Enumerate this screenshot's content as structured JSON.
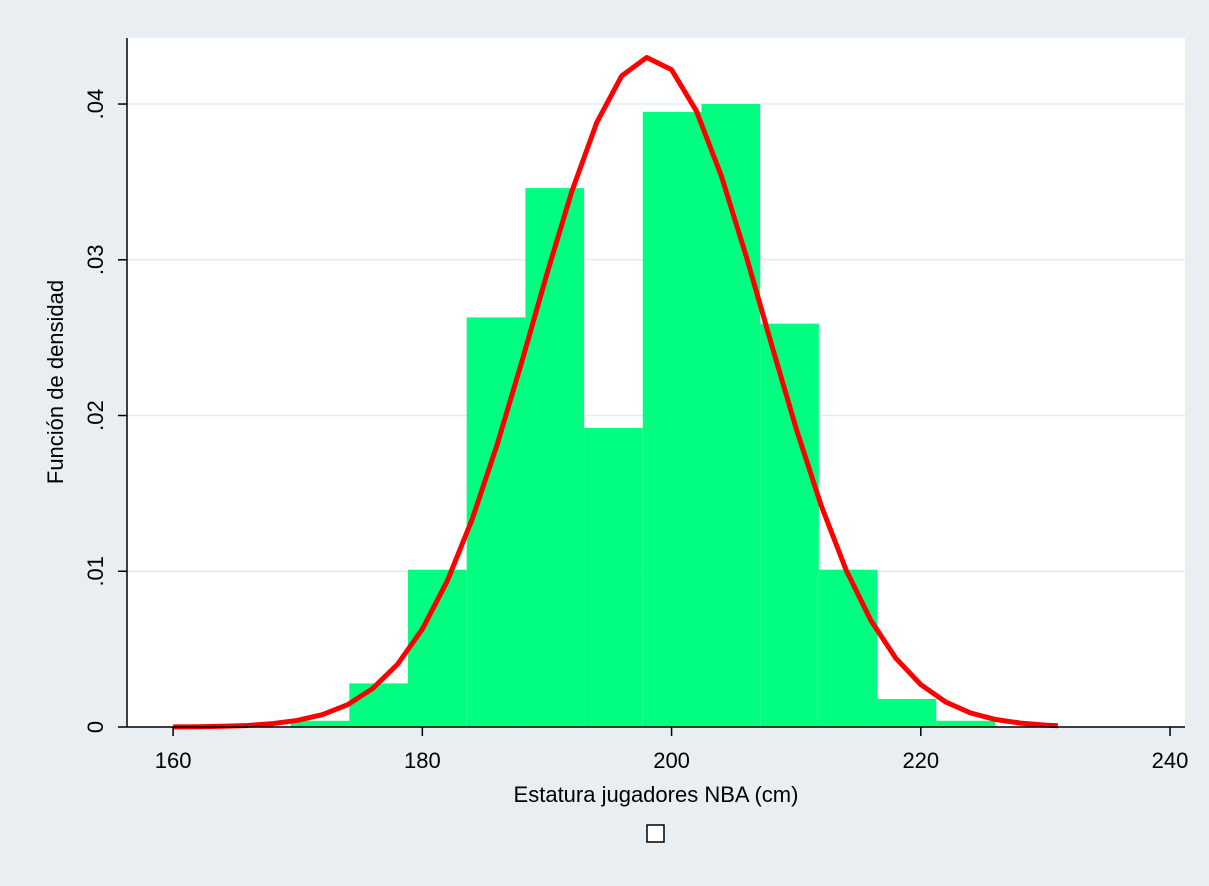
{
  "chart_data": {
    "type": "histogram",
    "xlabel": "Estatura jugadores NBA (cm)",
    "ylabel": "Función de densidad",
    "bins": [
      169.43,
      174.14,
      178.85,
      183.56,
      188.27,
      192.98,
      197.69,
      202.4,
      207.11,
      211.82,
      216.53,
      221.24,
      225.95
    ],
    "values": [
      0.0004,
      0.0028,
      0.0101,
      0.0263,
      0.0346,
      0.0192,
      0.0395,
      0.04,
      0.0259,
      0.0101,
      0.0018,
      0.0004
    ],
    "color": "#00ff80",
    "overlay": {
      "type": "line",
      "color": "#ff0000",
      "x": [
        160,
        162,
        164,
        166,
        168,
        170,
        172,
        174,
        176,
        178,
        180,
        182,
        184,
        186,
        188,
        190,
        192,
        194,
        196,
        198,
        200,
        202,
        204,
        206,
        208,
        210,
        212,
        214,
        216,
        218,
        220,
        222,
        224,
        226,
        228,
        230,
        231
      ],
      "y": [
        1e-05,
        2e-05,
        5e-05,
        0.0001,
        0.00022,
        0.00043,
        0.0008,
        0.00143,
        0.00246,
        0.00402,
        0.00628,
        0.00937,
        0.01334,
        0.01812,
        0.0235,
        0.0291,
        0.0344,
        0.03882,
        0.04181,
        0.04299,
        0.0422,
        0.03954,
        0.03537,
        0.0302,
        0.02462,
        0.01916,
        0.01423,
        0.01009,
        0.00683,
        0.00441,
        0.00272,
        0.0016,
        0.0009,
        0.00048,
        0.00025,
        0.00012,
        8e-05
      ]
    },
    "xlim": [
      156.3,
      241.2
    ],
    "xticks": [
      160,
      180,
      200,
      220,
      240
    ],
    "ylim": [
      0,
      0.04424
    ],
    "yticks": [
      0,
      {
        "value": 0.01,
        "label": ".01"
      },
      {
        "value": 0.02,
        "label": ".02"
      },
      {
        "value": 0.03,
        "label": ".03"
      },
      {
        "value": 0.04,
        "label": ".04"
      }
    ],
    "grid": true
  }
}
